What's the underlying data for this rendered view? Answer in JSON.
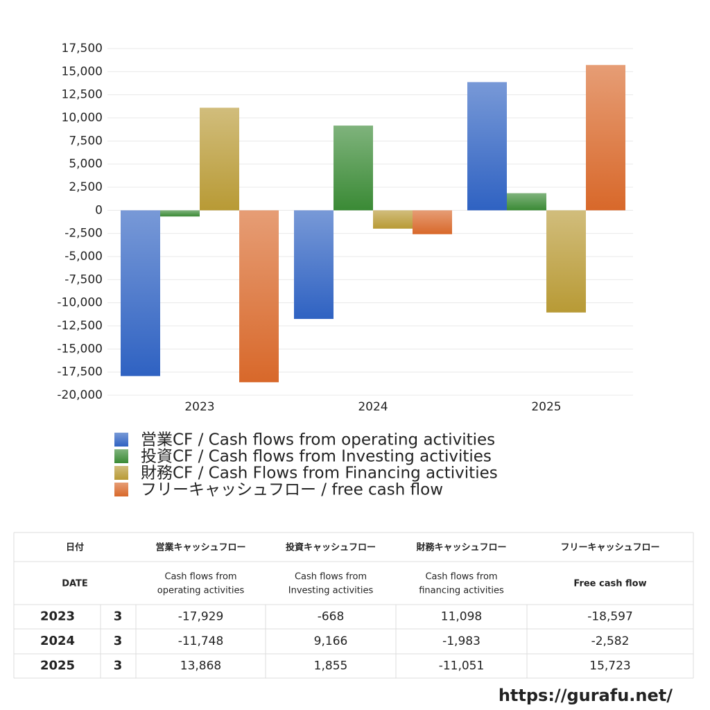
{
  "chart_data": {
    "type": "bar",
    "categories": [
      "2023",
      "2024",
      "2025"
    ],
    "series": [
      {
        "name": "営業CF / Cash flows from operating activities",
        "color": "#2f62c2",
        "values": [
          -17929,
          -11748,
          13868
        ]
      },
      {
        "name": "投資CF / Cash flows from Investing activities",
        "color": "#3a8a35",
        "values": [
          -668,
          9166,
          1855
        ]
      },
      {
        "name": "財務CF / Cash Flows from Financing activities",
        "color": "#b89a35",
        "values": [
          11098,
          -1983,
          -11051
        ]
      },
      {
        "name": "フリーキャッシュフロー / free cash flow",
        "color": "#d8682a",
        "values": [
          -18597,
          -2582,
          15723
        ]
      }
    ],
    "ylim": [
      -20000,
      17500
    ],
    "yticks": [
      {
        "value": -20000,
        "label": "-20,000"
      },
      {
        "value": -17500,
        "label": "-17,500"
      },
      {
        "value": -15000,
        "label": "-15,000"
      },
      {
        "value": -12500,
        "label": "-12,500"
      },
      {
        "value": -10000,
        "label": "-10,000"
      },
      {
        "value": -7500,
        "label": "-7,500"
      },
      {
        "value": -5000,
        "label": "-5,000"
      },
      {
        "value": -2500,
        "label": "-2,500"
      },
      0,
      {
        "value": 2500,
        "label": "2,500"
      },
      {
        "value": 5000,
        "label": "5,000"
      },
      {
        "value": 7500,
        "label": "7,500"
      },
      {
        "value": 10000,
        "label": "10,000"
      },
      {
        "value": 12500,
        "label": "12,500"
      },
      {
        "value": 15000,
        "label": "15,000"
      },
      {
        "value": 17500,
        "label": "17,500"
      }
    ],
    "grid": true
  },
  "table": {
    "headers": [
      {
        "jp": "日付",
        "en": [
          "DATE"
        ]
      },
      {
        "jp": "営業キャッシュフロー",
        "en": [
          "Cash flows from",
          "operating activities"
        ]
      },
      {
        "jp": "投資キャッシュフロー",
        "en": [
          "Cash flows from",
          "Investing activities"
        ]
      },
      {
        "jp": "財務キャッシュフロー",
        "en": [
          "Cash flows from",
          "financing activities"
        ]
      },
      {
        "jp": "フリーキャッシュフロー",
        "en": [
          "Free cash flow"
        ]
      }
    ],
    "rows": [
      {
        "date": "2023",
        "month": 3,
        "cells": [
          "-17,929",
          "-668",
          "11,098",
          "-18,597"
        ]
      },
      {
        "date": "2024",
        "month": 3,
        "cells": [
          "-11,748",
          "9,166",
          "-1,983",
          "-2,582"
        ]
      },
      {
        "date": "2025",
        "month": 3,
        "cells": [
          "13,868",
          "1,855",
          "-11,051",
          "15,723"
        ]
      }
    ],
    "negative_color": "#d9442e"
  },
  "footer": {
    "url": "https://gurafu.net/"
  }
}
